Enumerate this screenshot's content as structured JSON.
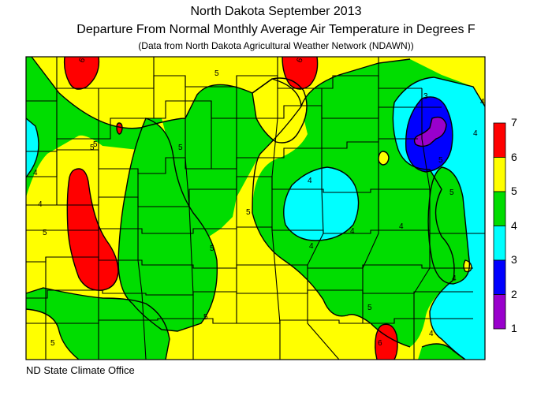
{
  "title": {
    "line1": "North Dakota September 2013",
    "line2": "Departure From Normal Monthly Average Air Temperature in Degrees F",
    "line3": "(Data from North Dakota Agricultural Weather Network (NDAWN))"
  },
  "credit": "ND State Climate Office",
  "legend": {
    "items": [
      {
        "label": "7",
        "color": "#ff0000"
      },
      {
        "label": "6",
        "color": "#ffff00"
      },
      {
        "label": "5",
        "color": "#00dd00"
      },
      {
        "label": "4",
        "color": "#00ffff"
      },
      {
        "label": "3",
        "color": "#0000ff"
      },
      {
        "label": "2",
        "color": "#9900cc"
      },
      {
        "label": "1",
        "color": ""
      }
    ]
  },
  "contour_labels": [
    "6",
    "6",
    "5",
    "5",
    "5",
    "5",
    "5",
    "5",
    "4",
    "4",
    "4",
    "4",
    "4",
    "4",
    "4",
    "5",
    "5",
    "5",
    "5",
    "6",
    "4",
    "4",
    "5",
    "5",
    "4",
    "3"
  ],
  "colors": {
    "level_3_4": "#00ffff",
    "level_4_5": "#00dd00",
    "level_5_6": "#ffff00",
    "level_6_7": "#ff0000",
    "level_2_3": "#0000ff",
    "level_1_2": "#9900cc"
  }
}
